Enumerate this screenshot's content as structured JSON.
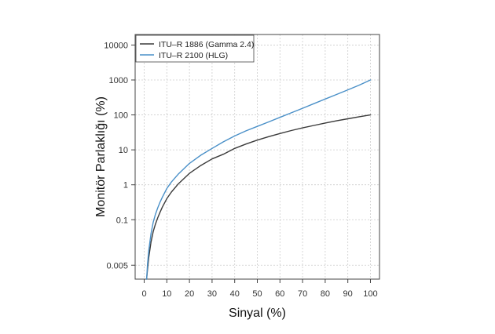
{
  "chart_data": {
    "type": "line",
    "title": "",
    "xlabel": "Sinyal (%)",
    "ylabel": "Monitör Parlaklığı (%)",
    "xlim": [
      -4,
      104
    ],
    "ylim": [
      0.002,
      20000
    ],
    "yscale": "log",
    "xticks": [
      0,
      10,
      20,
      30,
      40,
      50,
      60,
      70,
      80,
      90,
      100
    ],
    "yticks": [
      0.005,
      0.1,
      1,
      10,
      100,
      1000,
      10000
    ],
    "ytick_labels": [
      "0.005",
      "0.1",
      "1",
      "10",
      "100",
      "1000",
      "10000"
    ],
    "grid": true,
    "legend": "top-left",
    "series": [
      {
        "name": "ITU–R 1886 (Gamma 2.4)",
        "color": "#3a3a3a",
        "x": [
          1.06,
          1.5,
          2,
          3,
          4,
          5,
          6,
          7,
          8,
          10,
          12,
          15,
          20,
          25,
          30,
          35,
          40,
          45,
          50,
          55,
          60,
          65,
          70,
          75,
          80,
          85,
          90,
          95,
          100
        ],
        "y": [
          0.002,
          0.0039,
          0.0082,
          0.023,
          0.046,
          0.076,
          0.115,
          0.164,
          0.23,
          0.4,
          0.62,
          1.05,
          2.13,
          3.57,
          5.49,
          7.5,
          11.0,
          14.7,
          19.0,
          23.8,
          29.3,
          35.7,
          42.5,
          50.0,
          58.5,
          67.8,
          77.5,
          88.4,
          100
        ]
      },
      {
        "name": "ITU–R 2100 (HLG)",
        "color": "#4a90c8",
        "x": [
          1.06,
          1.5,
          2,
          3,
          4,
          5,
          6,
          7,
          8,
          10,
          12,
          15,
          20,
          25,
          30,
          35,
          40,
          45,
          50,
          55,
          60,
          65,
          70,
          75,
          80,
          85,
          90,
          95,
          100
        ],
        "y": [
          0.002,
          0.0055,
          0.013,
          0.04,
          0.085,
          0.145,
          0.22,
          0.32,
          0.44,
          0.78,
          1.2,
          2.0,
          4.1,
          7.0,
          11.0,
          17.0,
          25.0,
          35.0,
          47.0,
          63.0,
          85.0,
          115.0,
          155.0,
          210.0,
          285.0,
          385.0,
          520.0,
          710.0,
          1000.0
        ]
      }
    ]
  }
}
